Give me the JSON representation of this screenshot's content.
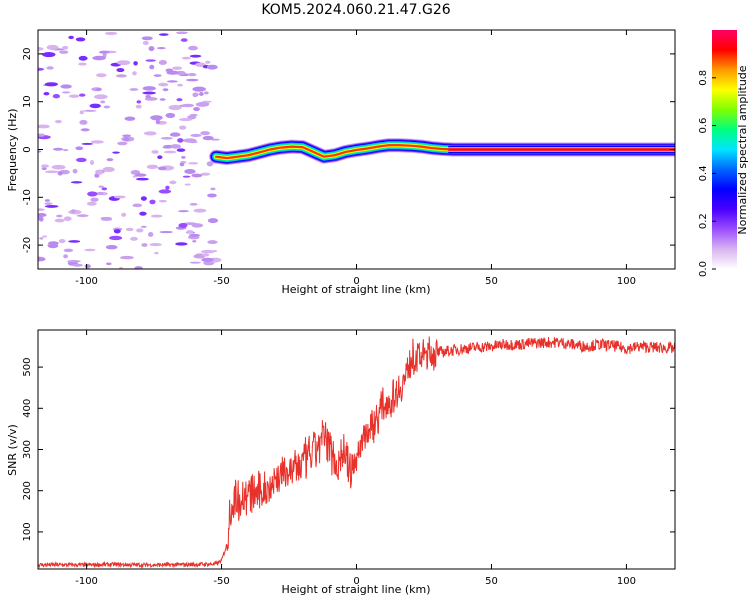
{
  "figure_title": "KOM5.2024.060.21.47.G26",
  "chart_data": [
    {
      "type": "heatmap",
      "title": "KOM5.2024.060.21.47.G26",
      "xlabel": "Height of straight line (km)",
      "ylabel": "Frequency (Hz)",
      "xlim": [
        -118,
        118
      ],
      "ylim": [
        -25,
        25
      ],
      "xticks": [
        -100,
        -50,
        0,
        50,
        100
      ],
      "yticks": [
        -20,
        -10,
        0,
        10,
        20
      ],
      "colorbar": {
        "label": "Normalized spectral amplitude",
        "range": [
          0,
          1
        ],
        "ticks": [
          "0.0",
          "0.2",
          "0.4",
          "0.6",
          "0.8"
        ],
        "colormap": [
          "#ffffff",
          "#d9b3f0",
          "#9a4dff",
          "#4a00ff",
          "#0000ff",
          "#0066ff",
          "#00e5ff",
          "#00ff7f",
          "#7fff00",
          "#ffff00",
          "#ff9900",
          "#ff0000",
          "#ff0066"
        ]
      },
      "noise_region_x": [
        -118,
        -52
      ],
      "signal_trace": {
        "x": [
          -52,
          -48,
          -44,
          -40,
          -36,
          -32,
          -28,
          -24,
          -20,
          -16,
          -12,
          -8,
          -4,
          0,
          4,
          8,
          12,
          16,
          20,
          24,
          28,
          32,
          36,
          50,
          75,
          100,
          118
        ],
        "freq": [
          -1.5,
          -1.8,
          -1.5,
          -1.2,
          -0.6,
          0.0,
          0.4,
          0.6,
          0.5,
          -0.5,
          -1.5,
          -1.2,
          -0.5,
          -0.1,
          0.2,
          0.6,
          0.9,
          0.9,
          0.8,
          0.6,
          0.3,
          0.1,
          0.0,
          0.0,
          0.0,
          0.0,
          0.0
        ]
      }
    },
    {
      "type": "line",
      "xlabel": "Height of straight line (km)",
      "ylabel": "SNR (v/v)",
      "xlim": [
        -118,
        118
      ],
      "ylim": [
        10,
        590
      ],
      "xticks": [
        -100,
        -50,
        0,
        50,
        100
      ],
      "yticks": [
        100,
        200,
        300,
        400,
        500
      ],
      "color": "#e8312a",
      "series": [
        {
          "x": [
            -118,
            -110,
            -100,
            -90,
            -80,
            -70,
            -60,
            -52,
            -50,
            -48,
            -47,
            -45,
            -40,
            -35,
            -30,
            -25,
            -20,
            -15,
            -12,
            -10,
            -7,
            -5,
            -2,
            0,
            3,
            5,
            8,
            10,
            13,
            15,
            18,
            20,
            25,
            30,
            35,
            40,
            45,
            50,
            55,
            60,
            65,
            70,
            75,
            80,
            85,
            90,
            95,
            100,
            105,
            110,
            118
          ],
          "y": [
            20,
            20,
            20,
            21,
            20,
            20,
            21,
            22,
            30,
            70,
            150,
            180,
            190,
            195,
            230,
            250,
            265,
            300,
            330,
            310,
            260,
            300,
            240,
            280,
            340,
            350,
            380,
            410,
            420,
            440,
            470,
            520,
            530,
            535,
            540,
            545,
            548,
            550,
            555,
            555,
            558,
            560,
            560,
            555,
            550,
            555,
            552,
            545,
            550,
            548,
            545
          ]
        }
      ]
    }
  ]
}
